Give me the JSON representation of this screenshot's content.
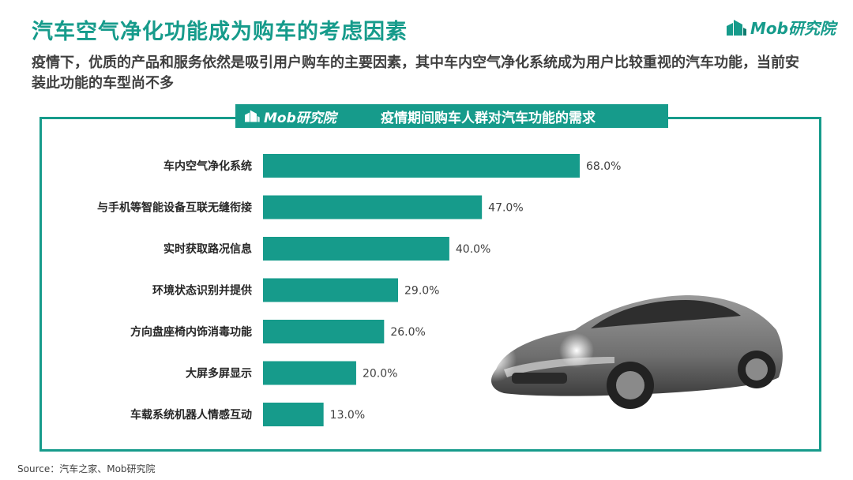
{
  "header": {
    "title": "汽车空气净化功能成为购车的考虑因素",
    "subtitle": "疫情下，优质的产品和服务依然是吸引用户购车的主要因素，其中车内空气净化系统成为用户比较重视的汽车功能，当前安装此功能的车型尚不多",
    "brand": "Mob研究院"
  },
  "panel": {
    "banner_brand": "Mob研究院",
    "banner_title": "疫情期间购车人群对汽车功能的需求"
  },
  "footer": {
    "source": "Source：汽车之家、Mob研究院"
  },
  "colors": {
    "accent": "#169b8b",
    "bar": "#169b8b"
  },
  "chart_data": {
    "type": "bar",
    "orientation": "horizontal",
    "title": "疫情期间购车人群对汽车功能的需求",
    "categories": [
      "车内空气净化系统",
      "与手机等智能设备互联无缝衔接",
      "实时获取路况信息",
      "环境状态识别并提供",
      "方向盘座椅内饰消毒功能",
      "大屏多屏显示",
      "车载系统机器人情感互动"
    ],
    "values": [
      68.0,
      47.0,
      40.0,
      29.0,
      26.0,
      20.0,
      13.0
    ],
    "value_labels": [
      "68.0%",
      "47.0%",
      "40.0%",
      "29.0%",
      "26.0%",
      "20.0%",
      "13.0%"
    ],
    "xlim": [
      0,
      100
    ],
    "grid": false,
    "legend": "none"
  }
}
